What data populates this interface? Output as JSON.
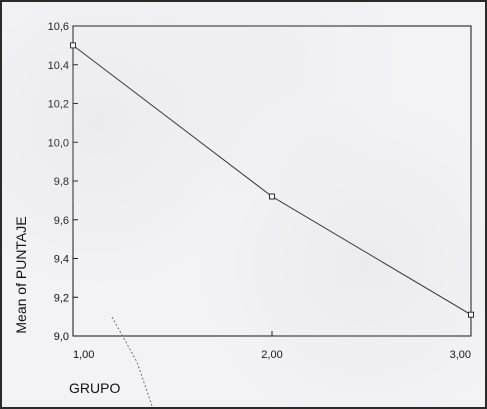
{
  "chart_data": {
    "type": "line",
    "title": "",
    "xlabel": "GRUPO",
    "ylabel": "Mean of PUNTAJE",
    "x": [
      1.0,
      2.0,
      3.0
    ],
    "x_tick_labels": [
      "1,00",
      "2,00",
      "3,00"
    ],
    "y_tick_labels": [
      "9,0",
      "9,2",
      "9,4",
      "9,6",
      "9,8",
      "10,0",
      "10,2",
      "10,4",
      "10,6"
    ],
    "y_ticks": [
      9.0,
      9.2,
      9.4,
      9.6,
      9.8,
      10.0,
      10.2,
      10.4,
      10.6
    ],
    "series": [
      {
        "values": [
          10.5,
          9.72,
          9.11
        ]
      }
    ],
    "xlim": [
      1.0,
      3.0
    ],
    "ylim": [
      9.0,
      10.6
    ],
    "grid": false,
    "legend": "none",
    "line_color": "#222222",
    "marker": "square"
  }
}
